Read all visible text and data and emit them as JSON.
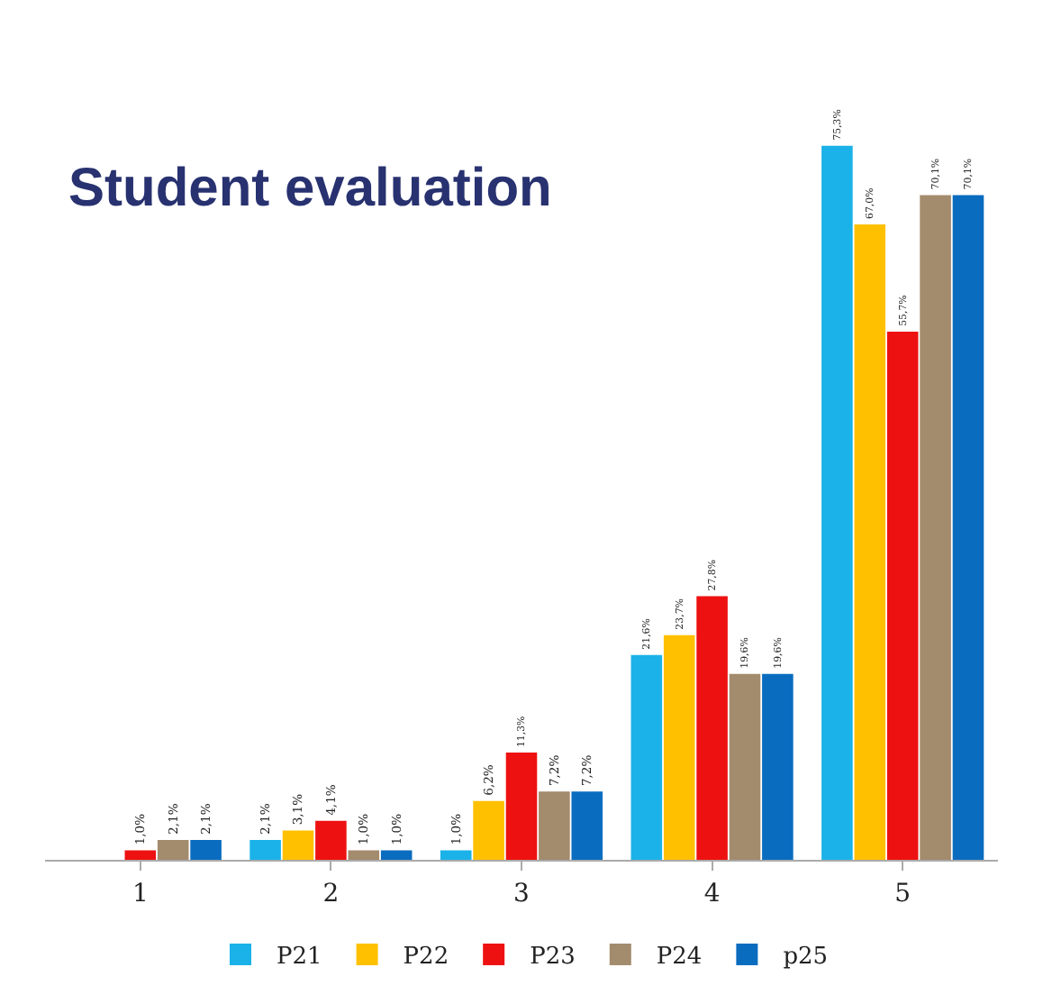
{
  "chart_data": {
    "type": "bar",
    "title": "Student evaluation",
    "categories": [
      "1",
      "2",
      "3",
      "4",
      "5"
    ],
    "series": [
      {
        "name": "P21",
        "color": "#1ab2e8",
        "values": [
          null,
          2.1,
          1.0,
          21.6,
          75.3
        ],
        "value_labels": [
          null,
          "2,1%",
          "1,0%",
          "21,6%",
          "75,3%"
        ]
      },
      {
        "name": "P22",
        "color": "#ffc000",
        "values": [
          null,
          3.1,
          6.2,
          23.7,
          67.0
        ],
        "value_labels": [
          null,
          "3,1%",
          "6,2%",
          "23,7%",
          "67,0%"
        ]
      },
      {
        "name": "P23",
        "color": "#ee1111",
        "values": [
          1.0,
          4.1,
          11.3,
          27.8,
          55.7
        ],
        "value_labels": [
          "1,0%",
          "4,1%",
          "11,3%",
          "27,8%",
          "55,7%"
        ]
      },
      {
        "name": "P24",
        "color": "#a38b6d",
        "values": [
          2.1,
          1.0,
          7.2,
          19.6,
          70.1
        ],
        "value_labels": [
          "2,1%",
          "1,0%",
          "7,2%",
          "19,6%",
          "70,1%"
        ]
      },
      {
        "name": "p25",
        "color": "#0a6cbf",
        "values": [
          2.1,
          1.0,
          7.2,
          19.6,
          70.1
        ],
        "value_labels": [
          "2,1%",
          "1,0%",
          "7,2%",
          "19,6%",
          "70,1%"
        ]
      }
    ],
    "legend": "bottom"
  }
}
